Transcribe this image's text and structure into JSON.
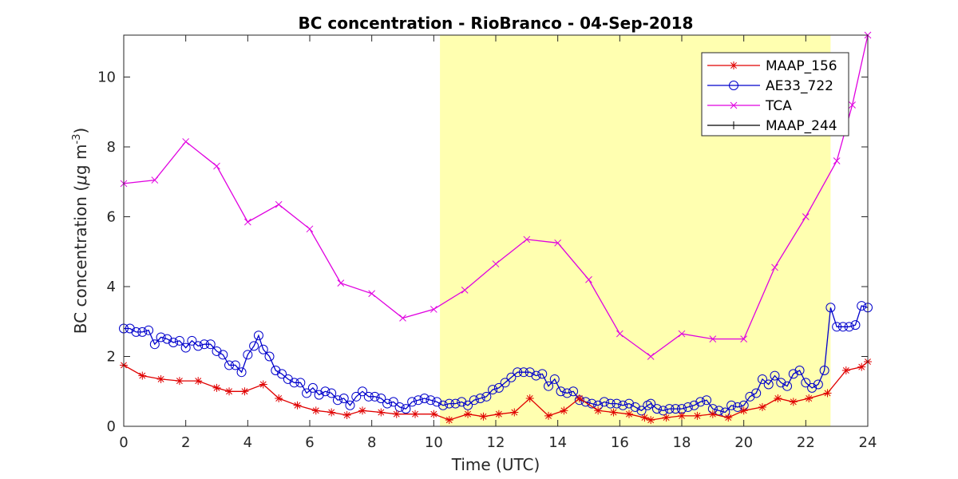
{
  "chart_data": {
    "type": "line",
    "title": "BC concentration  - RioBranco - 04-Sep-2018",
    "xlabel": "Time (UTC)",
    "ylabel_main": "BC concentration (",
    "ylabel_mu": "μ",
    "ylabel_rest": "g m",
    "ylabel_sup": "-3",
    "ylabel_close": ")",
    "xlim": [
      0,
      24
    ],
    "ylim": [
      0,
      11.2
    ],
    "xticks": [
      0,
      2,
      4,
      6,
      8,
      10,
      12,
      14,
      16,
      18,
      20,
      22,
      24
    ],
    "yticks": [
      0,
      2,
      4,
      6,
      8,
      10
    ],
    "grid": false,
    "legend_position": "top-right",
    "highlight_span": {
      "x": [
        10.2,
        22.8
      ],
      "color": "#ffffb0"
    },
    "series": [
      {
        "name": "MAAP_156",
        "color": "#e00000",
        "marker": "asterisk",
        "x": [
          0,
          0.6,
          1.2,
          1.8,
          2.4,
          3.0,
          3.4,
          3.9,
          4.5,
          5.0,
          5.6,
          6.2,
          6.7,
          7.2,
          7.7,
          8.3,
          8.8,
          9.4,
          10.0,
          10.5,
          11.1,
          11.6,
          12.1,
          12.6,
          13.1,
          13.7,
          14.2,
          14.7,
          15.3,
          15.8,
          16.3,
          16.8,
          17.0,
          17.5,
          18.0,
          18.5,
          19.0,
          19.5,
          20.0,
          20.6,
          21.1,
          21.6,
          22.1,
          22.7,
          23.3,
          23.8,
          24.0
        ],
        "values": [
          1.75,
          1.45,
          1.35,
          1.3,
          1.3,
          1.1,
          1.0,
          1.0,
          1.2,
          0.8,
          0.6,
          0.45,
          0.4,
          0.32,
          0.45,
          0.4,
          0.35,
          0.35,
          0.35,
          0.18,
          0.35,
          0.28,
          0.35,
          0.4,
          0.8,
          0.3,
          0.45,
          0.8,
          0.45,
          0.4,
          0.35,
          0.25,
          0.18,
          0.25,
          0.3,
          0.3,
          0.35,
          0.25,
          0.45,
          0.55,
          0.8,
          0.7,
          0.8,
          0.95,
          1.6,
          1.7,
          1.85
        ]
      },
      {
        "name": "AE33_722",
        "color": "#0000cc",
        "marker": "circle",
        "x": [
          0.0,
          0.2,
          0.4,
          0.6,
          0.8,
          1.0,
          1.2,
          1.4,
          1.6,
          1.8,
          2.0,
          2.2,
          2.4,
          2.6,
          2.8,
          3.0,
          3.2,
          3.4,
          3.6,
          3.8,
          4.0,
          4.2,
          4.35,
          4.5,
          4.7,
          4.9,
          5.1,
          5.3,
          5.5,
          5.7,
          5.9,
          6.1,
          6.3,
          6.5,
          6.7,
          6.9,
          7.1,
          7.3,
          7.5,
          7.7,
          7.9,
          8.1,
          8.3,
          8.5,
          8.7,
          8.9,
          9.1,
          9.3,
          9.5,
          9.7,
          9.9,
          10.1,
          10.3,
          10.5,
          10.7,
          10.9,
          11.1,
          11.3,
          11.5,
          11.7,
          11.9,
          12.1,
          12.3,
          12.5,
          12.7,
          12.9,
          13.1,
          13.3,
          13.5,
          13.7,
          13.9,
          14.1,
          14.3,
          14.5,
          14.7,
          14.9,
          15.1,
          15.3,
          15.5,
          15.7,
          15.9,
          16.1,
          16.3,
          16.5,
          16.7,
          16.9,
          17.0,
          17.2,
          17.4,
          17.6,
          17.8,
          18.0,
          18.2,
          18.4,
          18.6,
          18.8,
          19.0,
          19.2,
          19.4,
          19.6,
          19.8,
          20.0,
          20.2,
          20.4,
          20.6,
          20.8,
          21.0,
          21.2,
          21.4,
          21.6,
          21.8,
          22.0,
          22.2,
          22.4,
          22.6,
          22.8,
          23.0,
          23.2,
          23.4,
          23.6,
          23.8,
          24.0
        ],
        "values": [
          2.8,
          2.8,
          2.7,
          2.7,
          2.75,
          2.35,
          2.55,
          2.5,
          2.4,
          2.45,
          2.25,
          2.45,
          2.3,
          2.35,
          2.35,
          2.15,
          2.05,
          1.75,
          1.75,
          1.55,
          2.05,
          2.3,
          2.6,
          2.2,
          2.0,
          1.6,
          1.5,
          1.35,
          1.25,
          1.25,
          0.95,
          1.1,
          0.9,
          1.0,
          0.95,
          0.75,
          0.8,
          0.6,
          0.85,
          1.0,
          0.85,
          0.85,
          0.8,
          0.65,
          0.7,
          0.55,
          0.5,
          0.7,
          0.75,
          0.8,
          0.75,
          0.7,
          0.6,
          0.65,
          0.65,
          0.7,
          0.6,
          0.75,
          0.8,
          0.85,
          1.05,
          1.1,
          1.25,
          1.4,
          1.55,
          1.55,
          1.55,
          1.45,
          1.5,
          1.15,
          1.35,
          1.0,
          0.95,
          1.0,
          0.75,
          0.7,
          0.65,
          0.6,
          0.7,
          0.65,
          0.65,
          0.6,
          0.65,
          0.55,
          0.45,
          0.6,
          0.65,
          0.5,
          0.45,
          0.5,
          0.5,
          0.5,
          0.55,
          0.6,
          0.7,
          0.75,
          0.5,
          0.45,
          0.4,
          0.6,
          0.55,
          0.6,
          0.85,
          0.95,
          1.35,
          1.2,
          1.45,
          1.25,
          1.15,
          1.5,
          1.6,
          1.25,
          1.1,
          1.2,
          1.6,
          3.4,
          2.85,
          2.85,
          2.85,
          2.9,
          3.45,
          3.4
        ]
      },
      {
        "name": "TCA",
        "color": "#e000e0",
        "marker": "x",
        "x": [
          0,
          1,
          2,
          3,
          4,
          5,
          6,
          7,
          8,
          9,
          10,
          11,
          12,
          13,
          14,
          15,
          16,
          17,
          18,
          19,
          20,
          21,
          22,
          23,
          23.5,
          24
        ],
        "values": [
          6.95,
          7.05,
          8.15,
          7.45,
          5.85,
          6.35,
          5.65,
          4.1,
          3.8,
          3.1,
          3.35,
          3.9,
          4.65,
          5.35,
          5.25,
          4.2,
          2.65,
          2.0,
          2.65,
          2.5,
          2.5,
          4.55,
          6.0,
          7.6,
          9.2,
          11.2
        ]
      },
      {
        "name": "MAAP_244",
        "color": "#000000",
        "marker": "plus",
        "x": [],
        "values": []
      }
    ]
  }
}
